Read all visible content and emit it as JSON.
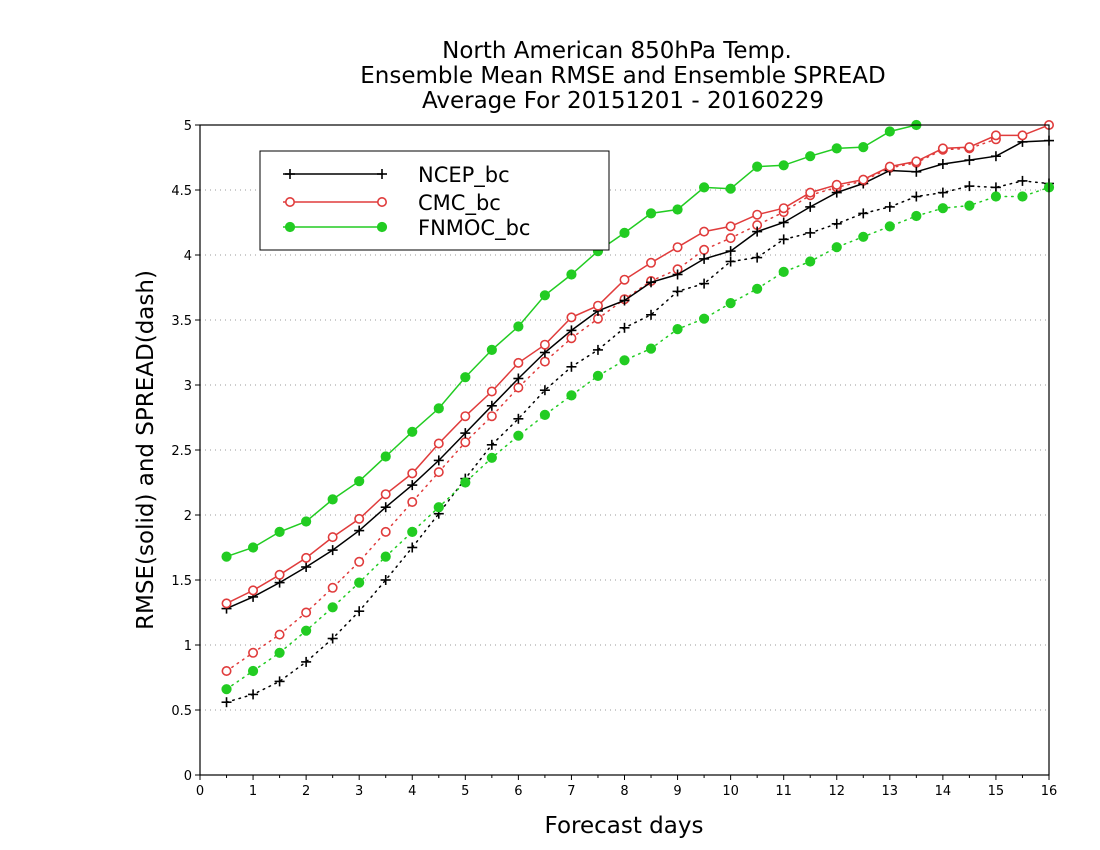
{
  "chart_data": {
    "type": "line",
    "title_lines": [
      "North American 850hPa Temp.",
      "Ensemble Mean RMSE and Ensemble SPREAD",
      "Average For 20151201 - 20160229"
    ],
    "xlabel": "Forecast days",
    "ylabel": "RMSE(solid) and SPREAD(dash)",
    "xlim": [
      0,
      16
    ],
    "ylim": [
      0,
      5
    ],
    "x_ticks": [
      "0",
      "1",
      "2",
      "3",
      "4",
      "5",
      "6",
      "7",
      "8",
      "9",
      "10",
      "11",
      "12",
      "13",
      "14",
      "15",
      "16"
    ],
    "y_ticks": [
      "0",
      "0.5",
      "1",
      "1.5",
      "2",
      "2.5",
      "3",
      "3.5",
      "4",
      "4.5",
      "5"
    ],
    "grid": "horizontal dotted",
    "legend_position": "top-left",
    "series": [
      {
        "name": "NCEP_bc",
        "color": "#000000",
        "marker": "plus",
        "rmse_x": [
          0.5,
          1,
          1.5,
          2,
          2.5,
          3,
          3.5,
          4,
          4.5,
          5,
          5.5,
          6,
          6.5,
          7,
          7.5,
          8,
          8.5,
          9,
          9.5,
          10,
          10.5,
          11,
          11.5,
          12,
          12.5,
          13,
          13.5,
          14,
          14.5,
          15,
          15.5,
          16
        ],
        "rmse": [
          1.28,
          1.37,
          1.48,
          1.6,
          1.73,
          1.88,
          2.06,
          2.23,
          2.42,
          2.63,
          2.84,
          3.05,
          3.25,
          3.42,
          3.57,
          3.65,
          3.79,
          3.85,
          3.97,
          4.03,
          4.18,
          4.25,
          4.37,
          4.48,
          4.55,
          4.65,
          4.64,
          4.7,
          4.73,
          4.76,
          4.87,
          4.88
        ],
        "spread_x": [
          0.5,
          1,
          1.5,
          2,
          2.5,
          3,
          3.5,
          4,
          4.5,
          5,
          5.5,
          6,
          6.5,
          7,
          7.5,
          8,
          8.5,
          9,
          9.5,
          10,
          10.5,
          11,
          11.5,
          12,
          12.5,
          13,
          13.5,
          14,
          14.5,
          15,
          15.5,
          16
        ],
        "spread": [
          0.56,
          0.62,
          0.72,
          0.87,
          1.05,
          1.26,
          1.5,
          1.75,
          2.01,
          2.28,
          2.54,
          2.74,
          2.96,
          3.14,
          3.27,
          3.44,
          3.54,
          3.72,
          3.78,
          3.95,
          3.98,
          4.12,
          4.17,
          4.24,
          4.32,
          4.37,
          4.45,
          4.48,
          4.53,
          4.52,
          4.57,
          4.55
        ]
      },
      {
        "name": "CMC_bc",
        "color": "#e03c3c",
        "marker": "open-circle",
        "rmse_x": [
          0.5,
          1,
          1.5,
          2,
          2.5,
          3,
          3.5,
          4,
          4.5,
          5,
          5.5,
          6,
          6.5,
          7,
          7.5,
          8,
          8.5,
          9,
          9.5,
          10,
          10.5,
          11,
          11.5,
          12,
          12.5,
          13,
          13.5,
          14,
          14.5,
          15,
          15.5,
          16
        ],
        "rmse": [
          1.32,
          1.42,
          1.54,
          1.67,
          1.83,
          1.97,
          2.16,
          2.32,
          2.55,
          2.76,
          2.95,
          3.17,
          3.31,
          3.52,
          3.61,
          3.81,
          3.94,
          4.06,
          4.18,
          4.22,
          4.31,
          4.36,
          4.48,
          4.54,
          4.58,
          4.68,
          4.72,
          4.82,
          4.83,
          4.92,
          4.92,
          5.02
        ],
        "spread_x": [
          0.5,
          1,
          1.5,
          2,
          2.5,
          3,
          3.5,
          4,
          4.5,
          5,
          5.5,
          6,
          6.5,
          7,
          7.5,
          8,
          8.5,
          9,
          9.5,
          10,
          10.5,
          11,
          11.5,
          12,
          12.5,
          13,
          13.5,
          14,
          14.5,
          15
        ],
        "spread": [
          0.8,
          0.94,
          1.08,
          1.25,
          1.44,
          1.64,
          1.87,
          2.1,
          2.33,
          2.56,
          2.76,
          2.98,
          3.18,
          3.36,
          3.51,
          3.66,
          3.8,
          3.89,
          4.04,
          4.13,
          4.23,
          4.33,
          4.46,
          4.52,
          4.57,
          4.67,
          4.71,
          4.81,
          4.82,
          4.89
        ]
      },
      {
        "name": "FNMOC_bc",
        "color": "#22cc22",
        "marker": "filled-circle",
        "rmse_x": [
          0.5,
          1,
          1.5,
          2,
          2.5,
          3,
          3.5,
          4,
          4.5,
          5,
          5.5,
          6,
          6.5,
          7,
          7.5,
          8,
          8.5,
          9,
          9.5,
          10,
          10.5,
          11,
          11.5,
          12,
          12.5,
          13,
          13.5
        ],
        "rmse": [
          1.68,
          1.75,
          1.87,
          1.95,
          2.12,
          2.26,
          2.45,
          2.64,
          2.82,
          3.06,
          3.27,
          3.45,
          3.69,
          3.85,
          4.03,
          4.17,
          4.32,
          4.35,
          4.52,
          4.51,
          4.68,
          4.69,
          4.76,
          4.82,
          4.83,
          4.95,
          5.01
        ],
        "spread_x": [
          0.5,
          1,
          1.5,
          2,
          2.5,
          3,
          3.5,
          4,
          4.5,
          5,
          5.5,
          6,
          6.5,
          7,
          7.5,
          8,
          8.5,
          9,
          9.5,
          10,
          10.5,
          11,
          11.5,
          12,
          12.5,
          13,
          13.5,
          14,
          14.5,
          15,
          15.5,
          16
        ],
        "spread": [
          0.66,
          0.8,
          0.94,
          1.11,
          1.29,
          1.48,
          1.68,
          1.87,
          2.06,
          2.25,
          2.44,
          2.61,
          2.77,
          2.92,
          3.07,
          3.19,
          3.28,
          3.43,
          3.51,
          3.63,
          3.74,
          3.87,
          3.95,
          4.06,
          4.14,
          4.22,
          4.3,
          4.36,
          4.38,
          4.45,
          4.45,
          4.52
        ]
      }
    ]
  }
}
